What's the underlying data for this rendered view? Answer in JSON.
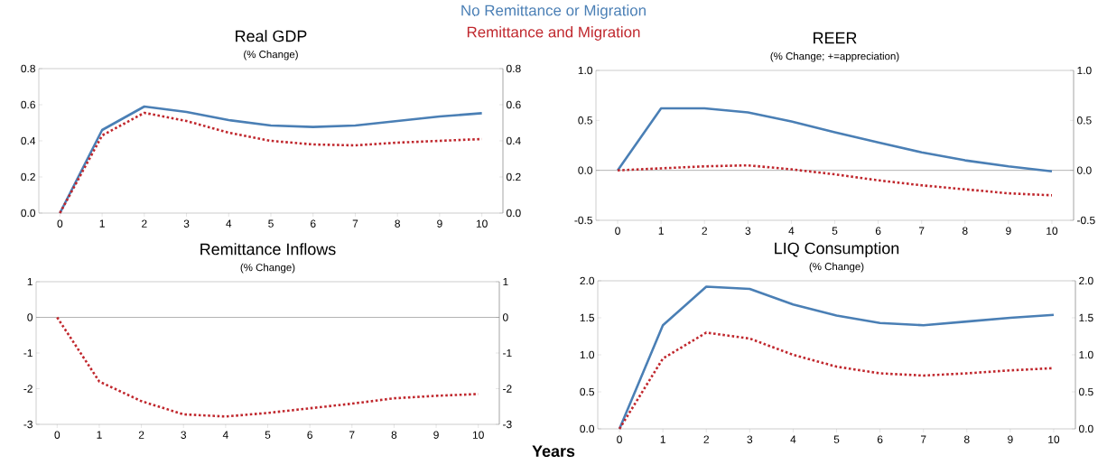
{
  "chart_data": [
    {
      "type": "line",
      "title": "Real GDP",
      "subtitle": "(% Change)",
      "legend": "top",
      "x": [
        0,
        1,
        2,
        3,
        4,
        5,
        6,
        7,
        8,
        9,
        10
      ],
      "xlim": [
        -0.5,
        10.5
      ],
      "xticks": [
        0,
        1,
        2,
        3,
        4,
        5,
        6,
        7,
        8,
        9,
        10
      ],
      "ylim": [
        0,
        0.8
      ],
      "yticks": [
        {
          "value": 0,
          "label": "0.0"
        },
        0.2,
        0.4,
        0.6,
        0.8
      ],
      "y2lim": [
        0,
        0.8
      ],
      "y2ticks": [
        {
          "value": 0,
          "label": "0.0"
        },
        0.2,
        0.4,
        0.6,
        0.8
      ],
      "series": [
        {
          "name": "No Remittance or Migration",
          "color": "#4a7fb5",
          "line_style": "solid",
          "values": [
            0,
            0.46,
            0.59,
            0.56,
            0.515,
            0.485,
            0.477,
            0.485,
            0.51,
            0.535,
            0.553
          ]
        },
        {
          "name": "Remittance and Migration",
          "color": "#c0272d",
          "line_style": "dotted",
          "values": [
            0,
            0.43,
            0.555,
            0.51,
            0.445,
            0.4,
            0.38,
            0.375,
            0.39,
            0.4,
            0.41
          ]
        }
      ]
    },
    {
      "type": "line",
      "title": "REER",
      "subtitle": "(% Change; +=appreciation)",
      "x": [
        0,
        1,
        2,
        3,
        4,
        5,
        6,
        7,
        8,
        9,
        10
      ],
      "xlim": [
        -0.5,
        10.5
      ],
      "xticks": [
        0,
        1,
        2,
        3,
        4,
        5,
        6,
        7,
        8,
        9,
        10
      ],
      "ylim": [
        -0.5,
        1.0
      ],
      "yticks": [
        -0.5,
        {
          "value": 0,
          "label": "0.0"
        },
        0.5,
        {
          "value": 1,
          "label": "1.0"
        }
      ],
      "y2lim": [
        -0.5,
        1.0
      ],
      "y2ticks": [
        -0.5,
        {
          "value": 0,
          "label": "0.0"
        },
        0.5,
        {
          "value": 1,
          "label": "1.0"
        }
      ],
      "ref_lines": [
        {
          "axis": "y",
          "value": 0,
          "color": "#808080"
        }
      ],
      "series": [
        {
          "color": "#4a7fb5",
          "line_style": "solid",
          "values": [
            0,
            0.62,
            0.62,
            0.58,
            0.49,
            0.38,
            0.28,
            0.18,
            0.1,
            0.04,
            -0.01
          ]
        },
        {
          "color": "#c0272d",
          "line_style": "dotted",
          "values": [
            0,
            0.02,
            0.04,
            0.05,
            0.01,
            -0.04,
            -0.1,
            -0.15,
            -0.19,
            -0.23,
            -0.25
          ]
        }
      ]
    },
    {
      "type": "line",
      "title": "Remittance Inflows",
      "subtitle": "(% Change)",
      "xlabel": "Years",
      "x": [
        0,
        1,
        2,
        3,
        4,
        5,
        6,
        7,
        8,
        9,
        10
      ],
      "xlim": [
        -0.5,
        10.5
      ],
      "xticks": [
        0,
        1,
        2,
        3,
        4,
        5,
        6,
        7,
        8,
        9,
        10
      ],
      "ylim": [
        -3,
        1
      ],
      "yticks": [
        -3,
        -2,
        -1,
        0,
        1
      ],
      "y2lim": [
        -3,
        1
      ],
      "y2ticks": [
        -3,
        -2,
        -1,
        0,
        1
      ],
      "ref_lines": [
        {
          "axis": "y",
          "value": 0,
          "color": "#808080"
        }
      ],
      "series": [
        {
          "color": "#c0272d",
          "line_style": "dotted",
          "values": [
            0,
            -1.8,
            -2.35,
            -2.72,
            -2.78,
            -2.68,
            -2.55,
            -2.42,
            -2.27,
            -2.2,
            -2.15
          ]
        }
      ]
    },
    {
      "type": "line",
      "title": "LIQ Consumption",
      "subtitle": "(% Change)",
      "x": [
        0,
        1,
        2,
        3,
        4,
        5,
        6,
        7,
        8,
        9,
        10
      ],
      "xlim": [
        -0.5,
        10.5
      ],
      "xticks": [
        0,
        1,
        2,
        3,
        4,
        5,
        6,
        7,
        8,
        9,
        10
      ],
      "ylim": [
        0,
        2.0
      ],
      "yticks": [
        {
          "value": 0,
          "label": "0.0"
        },
        0.5,
        {
          "value": 1,
          "label": "1.0"
        },
        1.5,
        {
          "value": 2,
          "label": "2.0"
        }
      ],
      "y2lim": [
        0,
        2.0
      ],
      "y2ticks": [
        {
          "value": 0,
          "label": "0.0"
        },
        0.5,
        {
          "value": 1,
          "label": "1.0"
        },
        1.5,
        {
          "value": 2,
          "label": "2.0"
        }
      ],
      "series": [
        {
          "color": "#4a7fb5",
          "line_style": "solid",
          "values": [
            0,
            1.4,
            1.92,
            1.89,
            1.68,
            1.53,
            1.43,
            1.4,
            1.45,
            1.5,
            1.54
          ]
        },
        {
          "color": "#c0272d",
          "line_style": "dotted",
          "values": [
            0,
            0.95,
            1.3,
            1.22,
            1.0,
            0.84,
            0.75,
            0.72,
            0.75,
            0.79,
            0.82
          ]
        }
      ]
    }
  ]
}
